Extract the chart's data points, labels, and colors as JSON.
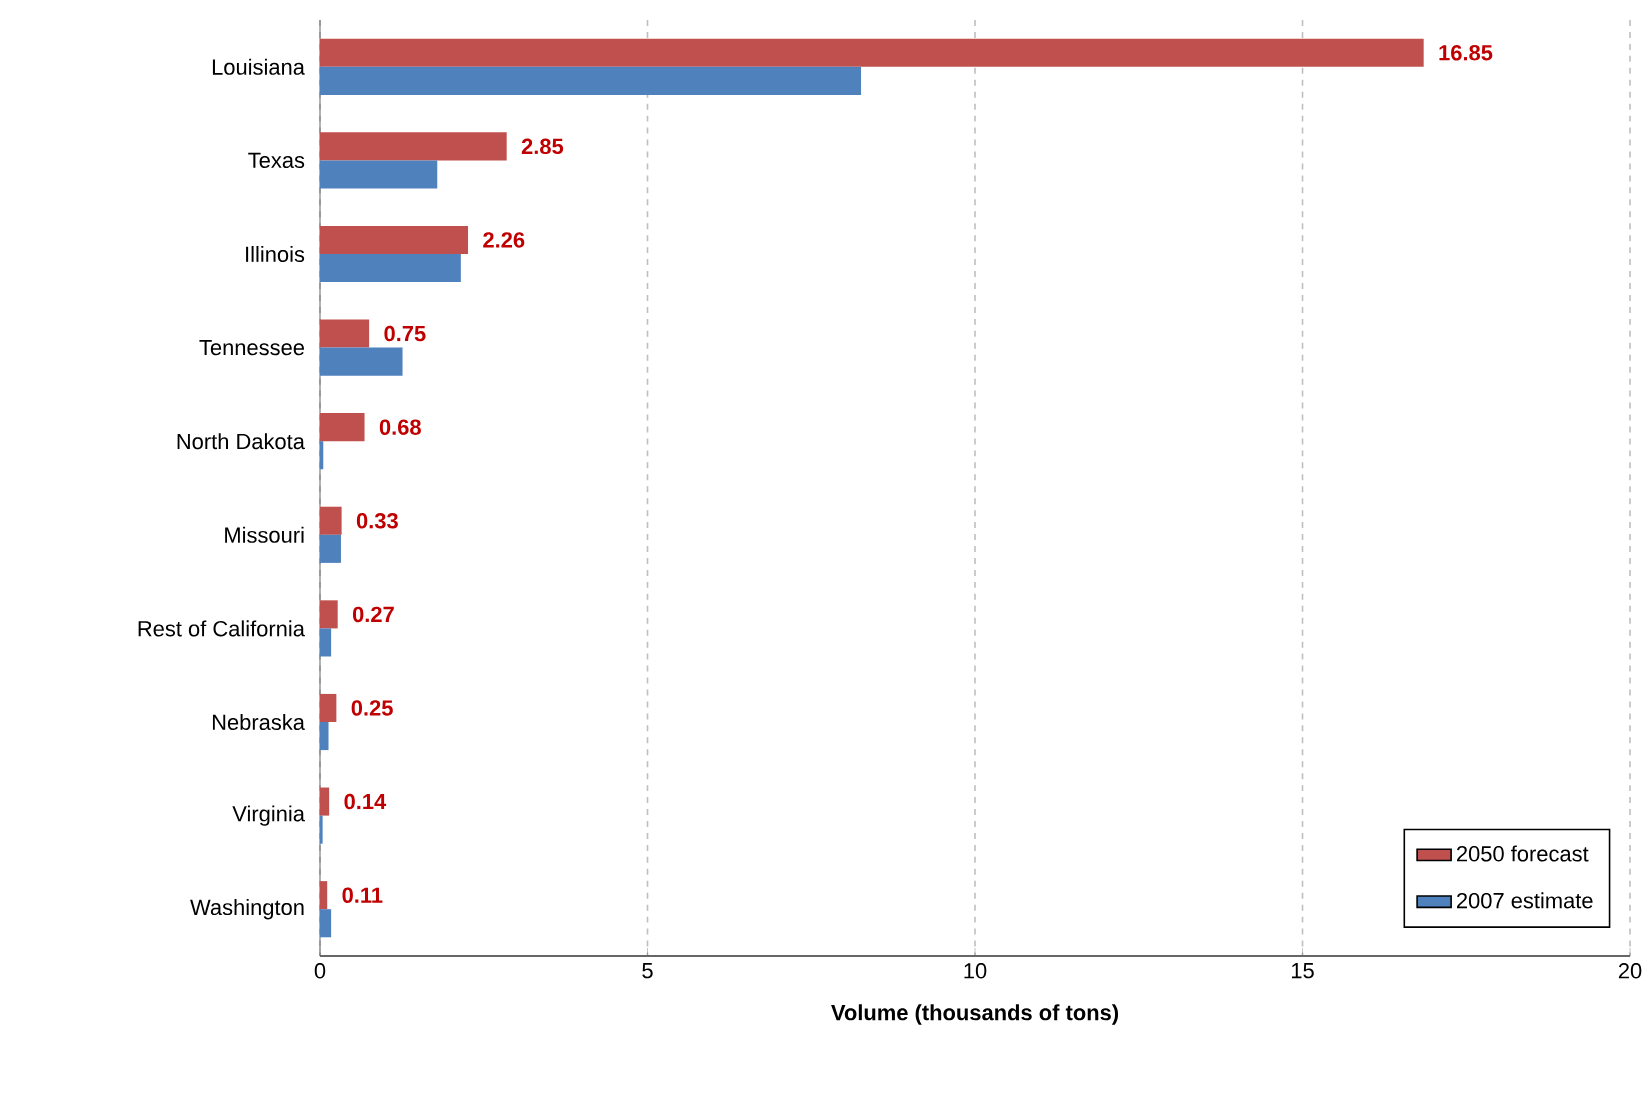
{
  "chart_data": {
    "type": "bar",
    "orientation": "horizontal",
    "xlabel": "Volume (thousands of tons)",
    "categories": [
      "Louisiana",
      "Texas",
      "Illinois",
      "Tennessee",
      "North Dakota",
      "Missouri",
      "Rest of California",
      "Nebraska",
      "Virginia",
      "Washington"
    ],
    "series": [
      {
        "name": "2050 forecast",
        "color": "#c0504d",
        "values": [
          16.85,
          2.85,
          2.26,
          0.75,
          0.68,
          0.33,
          0.27,
          0.25,
          0.14,
          0.11
        ],
        "value_labels": [
          "16.85",
          "2.85",
          "2.26",
          "0.75",
          "0.68",
          "0.33",
          "0.27",
          "0.25",
          "0.14",
          "0.11"
        ]
      },
      {
        "name": "2007 estimate",
        "color": "#4f81bd",
        "values": [
          8.26,
          1.79,
          2.15,
          1.26,
          0.05,
          0.32,
          0.17,
          0.13,
          0.04,
          0.17
        ]
      }
    ],
    "xlim": [
      0,
      20
    ],
    "xticks": [
      0,
      5,
      10,
      15,
      20
    ],
    "grid": "x",
    "legend": "bottom right"
  }
}
